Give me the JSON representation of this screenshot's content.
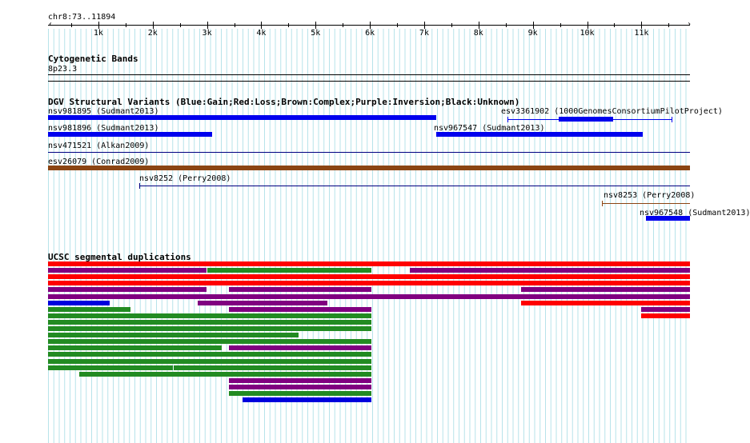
{
  "ruler": {
    "position_label": "chr8:73..11894",
    "ticks": [
      {
        "value": 1000,
        "label": "1k"
      },
      {
        "value": 2000,
        "label": "2k"
      },
      {
        "value": 3000,
        "label": "3k"
      },
      {
        "value": 4000,
        "label": "4k"
      },
      {
        "value": 5000,
        "label": "5k"
      },
      {
        "value": 6000,
        "label": "6k"
      },
      {
        "value": 7000,
        "label": "7k"
      },
      {
        "value": 8000,
        "label": "8k"
      },
      {
        "value": 9000,
        "label": "9k"
      },
      {
        "value": 10000,
        "label": "10k"
      },
      {
        "value": 11000,
        "label": "11k"
      }
    ]
  },
  "cytoband": {
    "title": "Cytogenetic Bands",
    "band": "8p23.3"
  },
  "dgv": {
    "title": "DGV Structural Variants (Blue:Gain;Red:Loss;Brown:Complex;Purple:Inversion;Black:Unknown)",
    "features": [
      {
        "label": "nsv981895 (Sudmant2013)",
        "color": "#0000ee",
        "style": "bar",
        "start": 73,
        "end": 7220
      },
      {
        "label": "esv3361902 (1000GenomesConsortiumPilotProject)",
        "color": "#0000ee",
        "style": "span",
        "start": 8540,
        "end": 11560,
        "blocks": [
          [
            9480,
            10480
          ]
        ]
      },
      {
        "label": "nsv981896 (Sudmant2013)",
        "color": "#0000ee",
        "style": "bar",
        "start": 73,
        "end": 3100
      },
      {
        "label": "nsv967547 (Sudmant2013)",
        "color": "#0000ee",
        "style": "bar",
        "start": 7220,
        "end": 11030
      },
      {
        "label": "nsv471521 (Alkan2009)",
        "color": "#000080",
        "style": "line",
        "start": 73,
        "end": 11894
      },
      {
        "label": "esv26079 (Conrad2009)",
        "color": "#8b4513",
        "style": "bar",
        "start": 73,
        "end": 11894
      },
      {
        "label": "nsv8252 (Perry2008)",
        "color": "#000080",
        "style": "span",
        "start": 1750,
        "end": 11894
      },
      {
        "label": "nsv8253 (Perry2008)",
        "color": "#8b4513",
        "style": "span",
        "start": 10280,
        "end": 11894
      },
      {
        "label": "nsv967548 (Sudmant2013)",
        "color": "#0000ee",
        "style": "bar",
        "start": 11080,
        "end": 11894
      }
    ]
  },
  "segdups": {
    "title": "UCSC segmental duplications",
    "colors": {
      "red": "#ff0000",
      "purple": "#800080",
      "green": "#228b22",
      "blue": "#0000dd"
    },
    "rows": [
      [
        [
          73,
          11894,
          "red"
        ]
      ],
      [
        [
          73,
          3000,
          "purple"
        ],
        [
          3000,
          6040,
          "green"
        ],
        [
          6740,
          11894,
          "purple"
        ]
      ],
      [
        [
          73,
          11894,
          "red"
        ]
      ],
      [
        [
          73,
          11894,
          "red"
        ]
      ],
      [
        [
          73,
          3000,
          "purple"
        ],
        [
          3400,
          6040,
          "purple"
        ],
        [
          8780,
          11894,
          "purple"
        ]
      ],
      [
        [
          73,
          11894,
          "purple"
        ]
      ],
      [
        [
          73,
          1220,
          "blue"
        ],
        [
          2830,
          5230,
          "purple"
        ],
        [
          8780,
          11894,
          "red"
        ]
      ],
      [
        [
          73,
          1600,
          "green"
        ],
        [
          3400,
          6040,
          "purple"
        ],
        [
          11000,
          11894,
          "purple"
        ]
      ],
      [
        [
          73,
          6040,
          "green"
        ],
        [
          11000,
          11894,
          "red"
        ]
      ],
      [
        [
          73,
          6040,
          "green"
        ]
      ],
      [
        [
          73,
          6040,
          "green"
        ]
      ],
      [
        [
          73,
          4700,
          "green"
        ]
      ],
      [
        [
          73,
          6040,
          "green"
        ]
      ],
      [
        [
          73,
          3290,
          "green"
        ],
        [
          3400,
          6040,
          "purple"
        ]
      ],
      [
        [
          73,
          6040,
          "green"
        ]
      ],
      [
        [
          73,
          6040,
          "green"
        ]
      ],
      [
        [
          73,
          2380,
          "green"
        ],
        [
          2380,
          6040,
          "green"
        ]
      ],
      [
        [
          650,
          6040,
          "green"
        ]
      ],
      [
        [
          3400,
          6040,
          "purple"
        ]
      ],
      [
        [
          3400,
          6040,
          "purple"
        ]
      ],
      [
        [
          3400,
          6040,
          "green"
        ]
      ],
      [
        [
          3650,
          6040,
          "blue"
        ]
      ]
    ]
  }
}
